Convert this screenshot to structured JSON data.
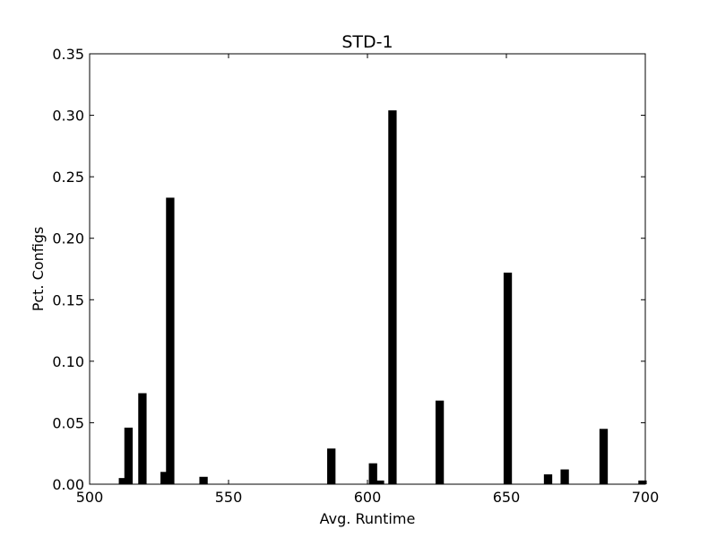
{
  "chart_data": {
    "type": "bar",
    "title": "STD-1",
    "xlabel": "Avg. Runtime",
    "ylabel": "Pct. Configs",
    "xlim": [
      500,
      700
    ],
    "ylim": [
      0,
      0.35
    ],
    "xticks": [
      500,
      550,
      600,
      650,
      700
    ],
    "yticks": [
      0.0,
      0.05,
      0.1,
      0.15,
      0.2,
      0.25,
      0.3,
      0.35
    ],
    "xtick_labels": [
      "500",
      "550",
      "600",
      "650",
      "700"
    ],
    "ytick_labels": [
      "0.00",
      "0.05",
      "0.10",
      "0.15",
      "0.20",
      "0.25",
      "0.30",
      "0.35"
    ],
    "grid": false,
    "legend": "none",
    "bar_color": "#000000",
    "bar_width": 3,
    "x": [
      512,
      514,
      519,
      527,
      529,
      541,
      587,
      602,
      604.5,
      609,
      626,
      650.5,
      665,
      671,
      685,
      699
    ],
    "values": [
      0.005,
      0.046,
      0.074,
      0.01,
      0.233,
      0.006,
      0.029,
      0.017,
      0.003,
      0.304,
      0.068,
      0.172,
      0.008,
      0.012,
      0.045,
      0.003
    ]
  }
}
